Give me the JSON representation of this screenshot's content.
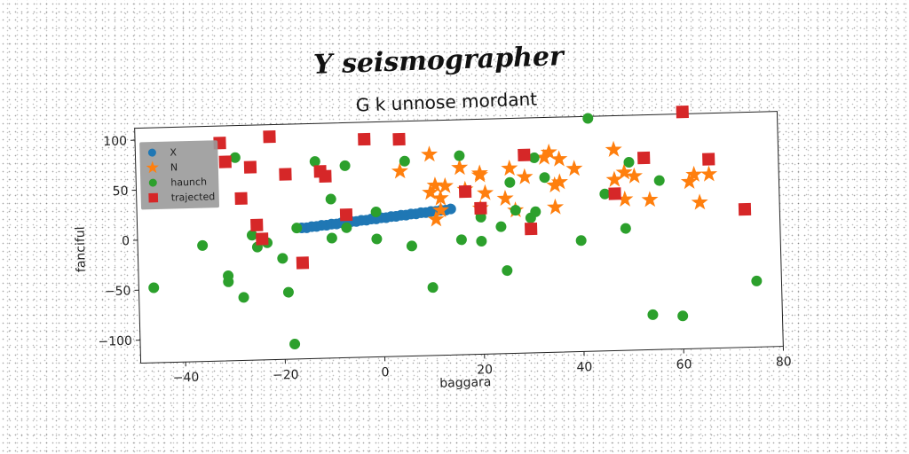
{
  "chart_data": {
    "type": "scatter",
    "suptitle": "Y seismographer",
    "title": "G k unnose mordant",
    "xlabel": "baggara",
    "ylabel": "fanciful",
    "xlim": [
      -49,
      80
    ],
    "ylim": [
      -123,
      112
    ],
    "xticks": [
      -40,
      -20,
      0,
      20,
      40,
      60,
      80
    ],
    "yticks": [
      -100,
      -50,
      0,
      50,
      100
    ],
    "grid": false,
    "legend_position": "top-left",
    "series": [
      {
        "name": "X",
        "color": "#1f77b4",
        "marker": "circle",
        "points": [
          [
            -16,
            8
          ],
          [
            -15,
            8
          ],
          [
            -14,
            9
          ],
          [
            -13,
            9
          ],
          [
            -12,
            10
          ],
          [
            -11,
            10
          ],
          [
            -10,
            11
          ],
          [
            -9,
            11
          ],
          [
            -8,
            12
          ],
          [
            -7,
            12
          ],
          [
            -6,
            13
          ],
          [
            -5,
            13
          ],
          [
            -4,
            14
          ],
          [
            -3,
            14
          ],
          [
            -2,
            15
          ],
          [
            -1,
            15
          ],
          [
            0,
            16
          ],
          [
            1,
            16
          ],
          [
            2,
            17
          ],
          [
            3,
            17
          ],
          [
            4,
            18
          ],
          [
            5,
            18
          ],
          [
            6,
            19
          ],
          [
            7,
            19
          ],
          [
            8,
            20
          ],
          [
            9,
            20
          ],
          [
            10,
            21
          ],
          [
            11,
            21
          ],
          [
            12,
            22
          ],
          [
            13,
            22
          ],
          [
            14,
            23
          ]
        ]
      },
      {
        "name": "N",
        "color": "#ff7f0e",
        "marker": "star",
        "points": [
          [
            4,
            62
          ],
          [
            10,
            78
          ],
          [
            10,
            40
          ],
          [
            11,
            47
          ],
          [
            11,
            13
          ],
          [
            12,
            34
          ],
          [
            12,
            22
          ],
          [
            13,
            46
          ],
          [
            16,
            64
          ],
          [
            17,
            42
          ],
          [
            20,
            56
          ],
          [
            20,
            58
          ],
          [
            20,
            23
          ],
          [
            21,
            38
          ],
          [
            25,
            32
          ],
          [
            26,
            62
          ],
          [
            27,
            20
          ],
          [
            29,
            53
          ],
          [
            33,
            72
          ],
          [
            34,
            77
          ],
          [
            35,
            44
          ],
          [
            35,
            22
          ],
          [
            36,
            47
          ],
          [
            36,
            70
          ],
          [
            39,
            60
          ],
          [
            47,
            78
          ],
          [
            47,
            48
          ],
          [
            49,
            28
          ],
          [
            49,
            55
          ],
          [
            51,
            51
          ],
          [
            54,
            27
          ],
          [
            62,
            44
          ],
          [
            63,
            51
          ],
          [
            64,
            23
          ],
          [
            66,
            51
          ]
        ]
      },
      {
        "name": "haunch",
        "color": "#2ca02c",
        "marker": "circle",
        "points": [
          [
            -46,
            -48
          ],
          [
            -36,
            -7
          ],
          [
            -31,
            -38
          ],
          [
            -31,
            -44
          ],
          [
            -29,
            80
          ],
          [
            -28,
            -60
          ],
          [
            -26,
            2
          ],
          [
            -25,
            -10
          ],
          [
            -23,
            -6
          ],
          [
            -20,
            -22
          ],
          [
            -19,
            -56
          ],
          [
            -18,
            -108
          ],
          [
            -17,
            8
          ],
          [
            -13,
            74
          ],
          [
            -10,
            -3
          ],
          [
            -10,
            36
          ],
          [
            -7,
            7
          ],
          [
            -7,
            69
          ],
          [
            -1,
            -5
          ],
          [
            -1,
            22
          ],
          [
            5,
            72
          ],
          [
            6,
            -13
          ],
          [
            10,
            -55
          ],
          [
            16,
            -8
          ],
          [
            16,
            76
          ],
          [
            20,
            14
          ],
          [
            20,
            -10
          ],
          [
            24,
            4
          ],
          [
            25,
            -40
          ],
          [
            26,
            48
          ],
          [
            27,
            20
          ],
          [
            30,
            12
          ],
          [
            31,
            18
          ],
          [
            31,
            72
          ],
          [
            33,
            52
          ],
          [
            40,
            -12
          ],
          [
            42,
            110
          ],
          [
            45,
            34
          ],
          [
            49,
            -1
          ],
          [
            50,
            65
          ],
          [
            54,
            -88
          ],
          [
            56,
            46
          ],
          [
            60,
            -90
          ],
          [
            75,
            -57
          ]
        ]
      },
      {
        "name": "trajected",
        "color": "#d62728",
        "marker": "square",
        "points": [
          [
            -32,
            95
          ],
          [
            -31,
            76
          ],
          [
            -28,
            39
          ],
          [
            -26,
            70
          ],
          [
            -25,
            12
          ],
          [
            -24,
            -2
          ],
          [
            -22,
            100
          ],
          [
            -19,
            62
          ],
          [
            -16,
            -27
          ],
          [
            -12,
            64
          ],
          [
            -11,
            59
          ],
          [
            -7,
            20
          ],
          [
            -3,
            95
          ],
          [
            4,
            94
          ],
          [
            17,
            40
          ],
          [
            20,
            23
          ],
          [
            29,
            75
          ],
          [
            30,
            1
          ],
          [
            47,
            34
          ],
          [
            53,
            69
          ],
          [
            61,
            114
          ],
          [
            66,
            66
          ],
          [
            73,
            15
          ]
        ]
      }
    ]
  }
}
